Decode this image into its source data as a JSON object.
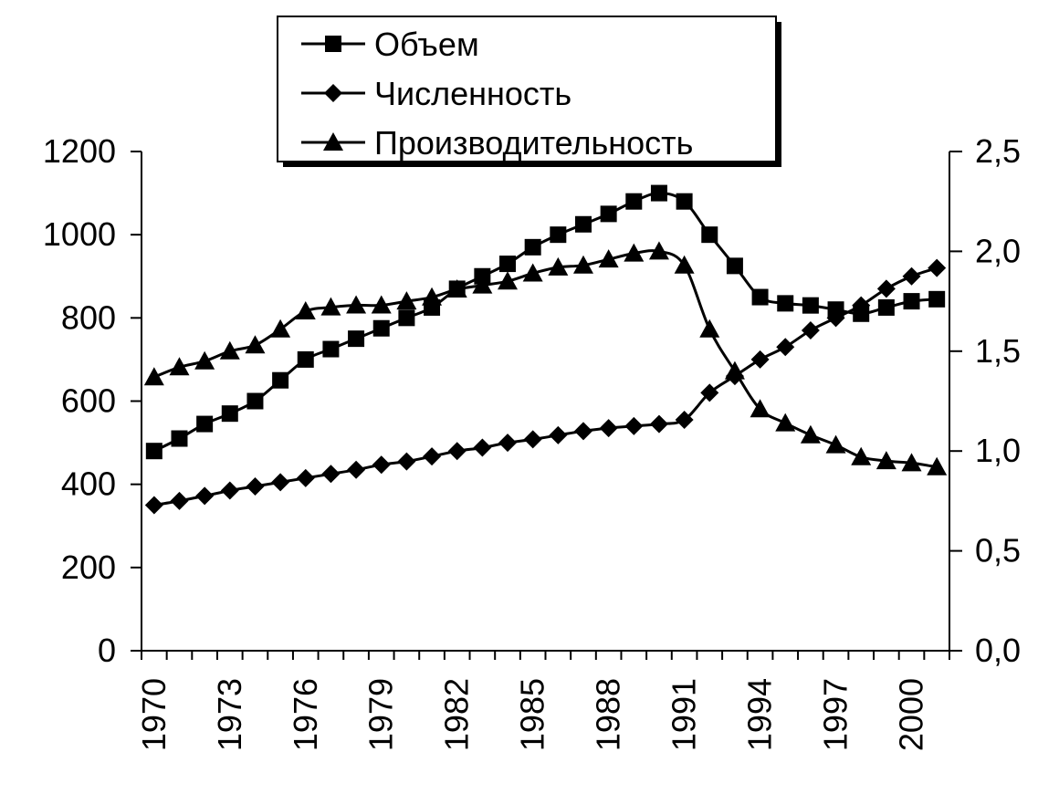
{
  "chart_data": {
    "type": "line",
    "x": [
      1970,
      1971,
      1972,
      1973,
      1974,
      1975,
      1976,
      1977,
      1978,
      1979,
      1980,
      1981,
      1982,
      1983,
      1984,
      1985,
      1986,
      1987,
      1988,
      1989,
      1990,
      1991,
      1992,
      1993,
      1994,
      1995,
      1996,
      1997,
      1998,
      1999,
      2000,
      2001
    ],
    "x_tick_labels": [
      "1970",
      "1973",
      "1976",
      "1979",
      "1982",
      "1985",
      "1988",
      "1991",
      "1994",
      "1997",
      "2000"
    ],
    "y_left": {
      "ylim": [
        0,
        1200
      ],
      "ticks": [
        0,
        200,
        400,
        600,
        800,
        1000,
        1200
      ],
      "tick_labels": [
        "0",
        "200",
        "400",
        "600",
        "800",
        "1000",
        "1200"
      ]
    },
    "y_right": {
      "ylim": [
        0.0,
        2.5
      ],
      "ticks": [
        0.0,
        0.5,
        1.0,
        1.5,
        2.0,
        2.5
      ],
      "tick_labels": [
        "0,0",
        "0,5",
        "1,0",
        "1,5",
        "2,0",
        "2,5"
      ]
    },
    "legend_position": "top-center",
    "grid": false,
    "series": [
      {
        "name": "Объем",
        "marker": "square",
        "axis": "left",
        "values": [
          480,
          510,
          545,
          570,
          600,
          650,
          700,
          725,
          750,
          775,
          800,
          825,
          870,
          900,
          930,
          970,
          1000,
          1025,
          1050,
          1080,
          1100,
          1080,
          1000,
          925,
          850,
          835,
          830,
          820,
          810,
          825,
          840,
          845
        ]
      },
      {
        "name": "Численность",
        "marker": "diamond",
        "axis": "left",
        "values": [
          350,
          360,
          372,
          385,
          395,
          405,
          415,
          425,
          435,
          447,
          455,
          467,
          480,
          488,
          500,
          508,
          518,
          528,
          535,
          540,
          545,
          555,
          620,
          660,
          700,
          730,
          770,
          800,
          830,
          870,
          900,
          920
        ]
      },
      {
        "name": "Производительность",
        "marker": "triangle",
        "axis": "right",
        "values": [
          1.37,
          1.42,
          1.45,
          1.5,
          1.53,
          1.61,
          1.7,
          1.72,
          1.73,
          1.73,
          1.75,
          1.77,
          1.81,
          1.83,
          1.85,
          1.89,
          1.92,
          1.93,
          1.96,
          1.99,
          2.0,
          1.93,
          1.61,
          1.4,
          1.21,
          1.14,
          1.08,
          1.03,
          0.97,
          0.95,
          0.94,
          0.92
        ]
      }
    ]
  }
}
